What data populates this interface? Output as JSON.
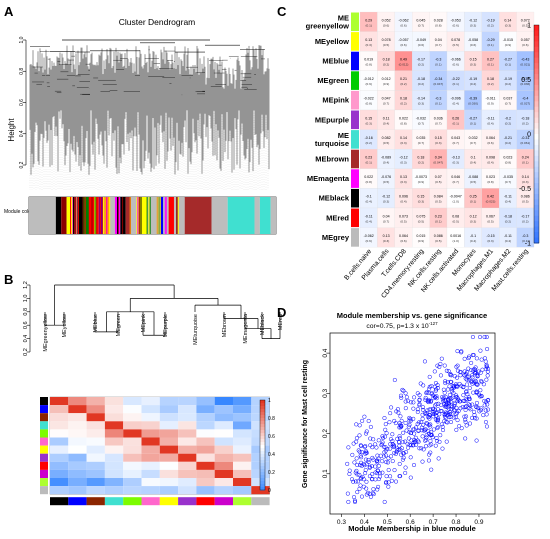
{
  "panels": {
    "A": {
      "label": "A",
      "title": "Cluster Dendrogram",
      "ylabel": "Height",
      "module_colors_label": "Module colors",
      "ticks": [
        "0.2",
        "0.4",
        "0.6",
        "0.8",
        "1.0"
      ],
      "module_color_bar": [
        {
          "color": "#bdbdbd",
          "w": 5
        },
        {
          "color": "#000000",
          "w": 1
        },
        {
          "color": "#8b0000",
          "w": 1
        },
        {
          "color": "#ffff00",
          "w": 1
        },
        {
          "color": "#ff69b4",
          "w": 1
        },
        {
          "color": "#000000",
          "w": 1
        },
        {
          "color": "#008000",
          "w": 1
        },
        {
          "color": "#ff0000",
          "w": 2
        },
        {
          "color": "#800080",
          "w": 1
        },
        {
          "color": "#ffa500",
          "w": 1
        },
        {
          "color": "#bdbdbd",
          "w": 1
        },
        {
          "color": "#ff00ff",
          "w": 1
        },
        {
          "color": "#000000",
          "w": 1
        },
        {
          "color": "#a52a2a",
          "w": 1
        },
        {
          "color": "#bdbdbd",
          "w": 1
        },
        {
          "color": "#ffff00",
          "w": 2
        },
        {
          "color": "#bdbdbd",
          "w": 2
        },
        {
          "color": "#0000ff",
          "w": 1
        },
        {
          "color": "#bdbdbd",
          "w": 1
        },
        {
          "color": "#ff0000",
          "w": 1
        },
        {
          "color": "#bdbdbd",
          "w": 2
        },
        {
          "color": "#a52a2a",
          "w": 5
        },
        {
          "color": "#bdbdbd",
          "w": 3
        },
        {
          "color": "#40e0d0",
          "w": 5
        },
        {
          "color": "#bdbdbd",
          "w": 1
        },
        {
          "color": "#40e0d0",
          "w": 2
        },
        {
          "color": "#bdbdbd",
          "w": 1
        }
      ]
    },
    "B": {
      "label": "B",
      "yticks": [
        "0.2",
        "0.4",
        "0.6",
        "0.8",
        "1.0",
        "1.2"
      ],
      "eigengenes": [
        "MEgreenyellow",
        "MEyellow",
        "MEblue",
        "MEgreen",
        "MEpink",
        "MEpurple",
        "MEturquoise",
        "MEbrown",
        "MEmagenta",
        "MEblack",
        "MEred"
      ],
      "strip_colors": [
        "#000000",
        "#0000ff",
        "#8b2500",
        "#40e0d0",
        "#7cfc00",
        "#ff66cc",
        "#ffff00",
        "#9932cc",
        "#ff0000",
        "#cc00cc",
        "#adff2f",
        "#bbbbbb"
      ],
      "legend_ticks": [
        "1",
        "0.8",
        "0.6",
        "0.4",
        "0.2",
        "0"
      ]
    },
    "C": {
      "label": "C",
      "modules": [
        "ME greenyellow",
        "MEyellow",
        "MEblue",
        "MEgreen",
        "MEpink",
        "MEpurple",
        "ME turquoise",
        "MEbrown",
        "MEmagenta",
        "MEblack",
        "MEred",
        "MEgrey"
      ],
      "module_colors": [
        "#adff2f",
        "#ffff00",
        "#0000ff",
        "#00cc00",
        "#ff99cc",
        "#9932cc",
        "#40e0d0",
        "#a52a2a",
        "#ff00ff",
        "#000000",
        "#ff0000",
        "#bbbbbb"
      ],
      "cells": [
        "B.cells.naive",
        "Plasma.cells",
        "T.cells.CD8",
        "CD4.memory.resting",
        "NK.cells.resting",
        "NK.cells.activated",
        "Monocytes",
        "Macrophages.M1",
        "Macrophages.M2",
        "Mast.cells.resting"
      ],
      "legend_ticks": [
        "1",
        "0.5",
        "0",
        "-0.5",
        "-1"
      ]
    },
    "D": {
      "label": "D",
      "title": "Module membership vs. gene significance",
      "subtitle": "cor=0.75, p=1.3 x 10",
      "subtitle_exp": "-127",
      "xlabel": "Module Membership in blue module",
      "ylabel": "Gene significance for Mast cell resting"
    }
  },
  "chart_data": [
    {
      "type": "dendrogram",
      "panel": "A",
      "title": "Cluster Dendrogram",
      "ylabel": "Height",
      "ylim": [
        0.2,
        1.0
      ]
    },
    {
      "type": "heatmap",
      "panel": "B",
      "description_rows": [
        "MEgreenyellow",
        "MEyellow",
        "MEblue",
        "MEgreen",
        "MEpink",
        "MEpurple",
        "MEturquoise",
        "MEbrown",
        "MEmagenta",
        "MEblack",
        "MEred"
      ],
      "dendrogram_ylim": [
        0.2,
        1.2
      ],
      "legend_range": [
        0,
        1
      ]
    },
    {
      "type": "heatmap",
      "panel": "C",
      "rows": [
        "ME greenyellow",
        "MEyellow",
        "MEblue",
        "MEgreen",
        "MEpink",
        "MEpurple",
        "ME turquoise",
        "MEbrown",
        "MEmagenta",
        "MEblack",
        "MEred",
        "MEgrey"
      ],
      "columns": [
        "B.cells.naive",
        "Plasma.cells",
        "T.cells.CD8",
        "CD4.memory.resting",
        "NK.cells.resting",
        "NK.cells.activated",
        "Monocytes",
        "Macrophages.M1",
        "Macrophages.M2",
        "Mast.cells.resting"
      ],
      "values": [
        [
          0.29,
          0.052,
          -0.062,
          0.045,
          0.028,
          -0.053,
          -0.12,
          -0.19,
          0.14,
          0.072
        ],
        [
          0.13,
          0.078,
          -0.057,
          -0.049,
          0.04,
          0.078,
          -0.058,
          -0.29,
          -0.015,
          0.057
        ],
        [
          0.019,
          0.18,
          0.49,
          -0.17,
          -0.3,
          -0.066,
          0.15,
          0.27,
          -0.27,
          -0.43
        ],
        [
          -0.012,
          0.012,
          0.21,
          -0.18,
          -0.34,
          -0.22,
          -0.19,
          0.18,
          -0.19,
          -0.37
        ],
        [
          -0.022,
          0.047,
          0.18,
          -0.14,
          -0.3,
          -0.096,
          -0.39,
          -0.011,
          0.037,
          -0.4
        ],
        [
          0.15,
          0.11,
          0.022,
          -0.032,
          0.036,
          0.26,
          -0.27,
          -0.11,
          -0.2,
          -0.18
        ],
        [
          -0.16,
          0.082,
          0.14,
          0.035,
          0.15,
          0.043,
          0.032,
          0.064,
          -0.21,
          -0.31
        ],
        [
          0.23,
          -0.089,
          -0.12,
          0.18,
          0.34,
          -0.13,
          0.1,
          0.098,
          0.023,
          0.24
        ],
        [
          0.022,
          -0.076,
          0.13,
          -0.0073,
          0.07,
          0.046,
          -0.088,
          0.023,
          -0.035,
          0.14
        ],
        [
          -0.1,
          -0.12,
          0.096,
          0.15,
          0.084,
          -0.0047,
          0.25,
          0.42,
          -0.11,
          0.086
        ],
        [
          -0.11,
          0.04,
          0.073,
          0.075,
          0.23,
          0.08,
          0.12,
          0.067,
          -0.18,
          -0.17
        ],
        [
          -0.062,
          0.13,
          0.064,
          0.015,
          0.086,
          0.0016,
          -0.1,
          -0.15,
          -0.11,
          -0.3
        ]
      ],
      "legend_range": [
        -1,
        1
      ]
    },
    {
      "type": "scatter",
      "panel": "D",
      "title": "Module membership vs. gene significance",
      "xlabel": "Module Membership in blue module",
      "ylabel": "Gene significance for Mast cell resting",
      "xlim": [
        0.25,
        0.97
      ],
      "ylim": [
        0.0,
        0.45
      ],
      "xticks": [
        0.3,
        0.4,
        0.5,
        0.6,
        0.7,
        0.8,
        0.9
      ],
      "yticks": [
        0.1,
        0.2,
        0.3,
        0.4
      ],
      "cor": 0.75,
      "p": "1.3 x 10^-127",
      "n_points": 620,
      "trend": {
        "slope": 0.42,
        "intercept": -0.05,
        "noise_sd": 0.055
      },
      "marker_color": "#0000ff"
    }
  ]
}
